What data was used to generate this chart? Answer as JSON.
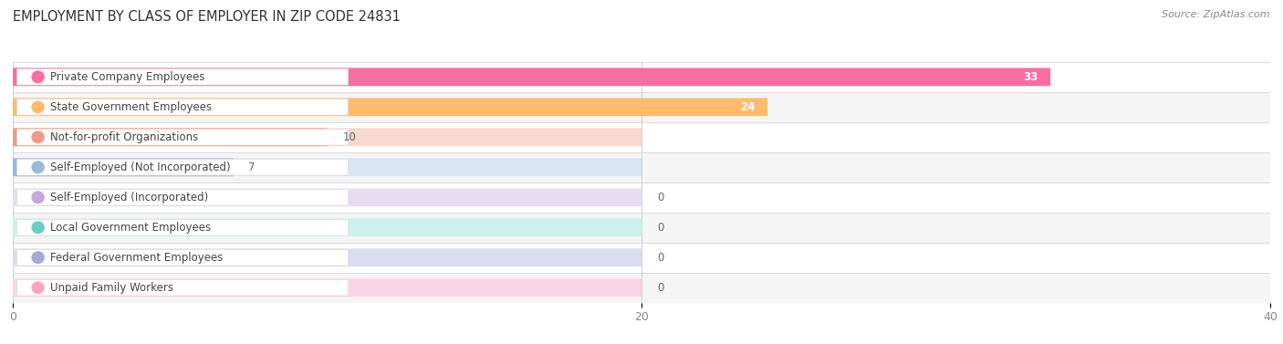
{
  "title": "EMPLOYMENT BY CLASS OF EMPLOYER IN ZIP CODE 24831",
  "source": "Source: ZipAtlas.com",
  "categories": [
    "Private Company Employees",
    "State Government Employees",
    "Not-for-profit Organizations",
    "Self-Employed (Not Incorporated)",
    "Self-Employed (Incorporated)",
    "Local Government Employees",
    "Federal Government Employees",
    "Unpaid Family Workers"
  ],
  "values": [
    33,
    24,
    10,
    7,
    0,
    0,
    0,
    0
  ],
  "bar_colors": [
    "#F76FA0",
    "#FFBB6E",
    "#F0998A",
    "#9BBAD8",
    "#C3A8D8",
    "#6ECBC5",
    "#A8A8D5",
    "#F8A8BE"
  ],
  "bar_bg_colors": [
    "#FAD5E3",
    "#FDECD3",
    "#F8D8D0",
    "#D8E5F3",
    "#E8DCF3",
    "#CCF0EC",
    "#DCDCF0",
    "#FAD5E5"
  ],
  "dot_colors": [
    "#F76FA0",
    "#FFBB6E",
    "#F0998A",
    "#9BBAD8",
    "#C3A8D8",
    "#6ECBC5",
    "#A8A8D5",
    "#F8A8BE"
  ],
  "row_bg_colors": [
    "#FFFFFF",
    "#F5F5F5"
  ],
  "xlim": [
    0,
    40
  ],
  "xticks": [
    0,
    20,
    40
  ],
  "bar_height": 0.58,
  "bg_bar_width": 20,
  "label_fontsize": 8.5,
  "value_fontsize": 8.5,
  "title_fontsize": 10.5,
  "background_color": "#FFFFFF"
}
